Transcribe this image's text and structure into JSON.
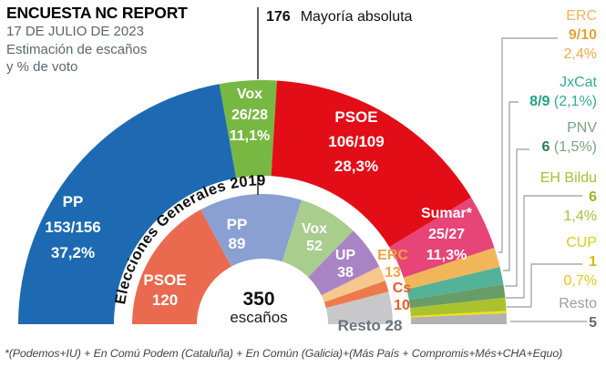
{
  "header": {
    "title": "ENCUESTA NC REPORT",
    "date": "17 DE JULIO DE 2023",
    "subtitle_line1": "Estimación de escaños",
    "subtitle_line2": "y % de voto"
  },
  "majority": {
    "value": "176",
    "label": "Mayoría absoluta"
  },
  "center": {
    "total": "350",
    "unit": "escaños"
  },
  "footnote": "*(Podemos+IU) + En Comú Podem (Cataluña) + En Común (Galicia)+(Más País + Compromis+Més+CHA+Equo)",
  "chart_data": {
    "type": "hemicycle",
    "title": "Encuesta NC Report 17-07-2023: estimación de escaños y % de voto",
    "total_seats": 350,
    "majority_seats": 176,
    "outer_ring": {
      "name": "Encuesta NC Report (estimación)",
      "segments": [
        {
          "party": "PP",
          "seats": "153/156",
          "seats_arc": 153,
          "vote_pct": "37,2%",
          "color": "#1d6ab2"
        },
        {
          "party": "Vox",
          "seats": "26/28",
          "seats_arc": 26,
          "vote_pct": "11,1%",
          "color": "#77b843"
        },
        {
          "party": "PSOE",
          "seats": "106/109",
          "seats_arc": 106,
          "vote_pct": "28,3%",
          "color": "#e30d17"
        },
        {
          "party": "Sumar*",
          "seats": "25/27",
          "seats_arc": 25,
          "vote_pct": "11,3%",
          "color": "#e74478"
        },
        {
          "party": "ERC",
          "seats": "9/10",
          "seats_arc": 9,
          "vote_pct": "2,4%",
          "color": "#f2b65a"
        },
        {
          "party": "JxCat",
          "seats": "8/9",
          "seats_arc": 8,
          "vote_pct": "2,1%",
          "color": "#53b298"
        },
        {
          "party": "PNV",
          "seats": "6",
          "seats_arc": 6,
          "vote_pct": "1,5%",
          "color": "#689d67"
        },
        {
          "party": "EH Bildu",
          "seats": "6",
          "seats_arc": 6,
          "vote_pct": "1,4%",
          "color": "#abc22f"
        },
        {
          "party": "CUP",
          "seats": "1",
          "seats_arc": 1,
          "vote_pct": "0,7%",
          "color": "#f4e600"
        },
        {
          "party": "Resto",
          "seats": "5",
          "seats_arc": 5,
          "vote_pct": "",
          "color": "#b2b2b4"
        }
      ]
    },
    "inner_ring": {
      "name": "Elecciones Generales 2019",
      "segments": [
        {
          "party": "PSOE",
          "seats_arc": 120,
          "color": "#ea6a50"
        },
        {
          "party": "PP",
          "seats_arc": 89,
          "color": "#8aa0d2"
        },
        {
          "party": "Vox",
          "seats_arc": 52,
          "color": "#a8cd8d"
        },
        {
          "party": "UP",
          "seats_arc": 38,
          "color": "#a983c5"
        },
        {
          "party": "ERC",
          "seats_arc": 13,
          "color": "#f6c88e"
        },
        {
          "party": "Cs",
          "seats_arc": 10,
          "color": "#ee7a4b"
        },
        {
          "party": "Resto",
          "seats_arc": 28,
          "color": "#c8c8ca"
        }
      ]
    }
  },
  "legend": [
    {
      "id": "erc",
      "name": "ERC",
      "value": "9/10",
      "pct": "2,4%",
      "name_color": "#f3b261",
      "value_color": "#e7a238",
      "pct_color": "#f0a94c"
    },
    {
      "id": "jxcat",
      "name": "JxCat",
      "value": "8/9",
      "value_suffix": " (2,1%)",
      "name_color": "#34ab91",
      "value_color": "#21a287",
      "suffix_color": "#34ab91"
    },
    {
      "id": "pnv",
      "name": "PNV",
      "value": "6",
      "value_suffix": " (1,5%)",
      "name_color": "#7aa37f",
      "value_color": "#2f7c50",
      "suffix_color": "#7aa37f"
    },
    {
      "id": "ehbildu",
      "name": "EH Bildu",
      "value": "6",
      "pct": "1,4%",
      "name_color": "#a6bf3a",
      "value_color": "#9cb728",
      "pct_color": "#a6bf3a"
    },
    {
      "id": "cup",
      "name": "CUP",
      "value": "1",
      "pct": "0,7%",
      "name_color": "#dec91d",
      "value_color": "#d3be0e",
      "pct_color": "#dec91d"
    },
    {
      "id": "resto",
      "name": "Resto",
      "value": "5",
      "name_color": "#98a1a9",
      "value_color": "#5c6e7b"
    }
  ],
  "colors": {
    "majority_line": "#1a1a1a",
    "leader_line": "#9b9b9b",
    "ring_2019_text": "#101010",
    "inner_erc_text": "#f0a344",
    "inner_cs_text": "#e85b2d",
    "inner_resto_text": "#68747f"
  }
}
